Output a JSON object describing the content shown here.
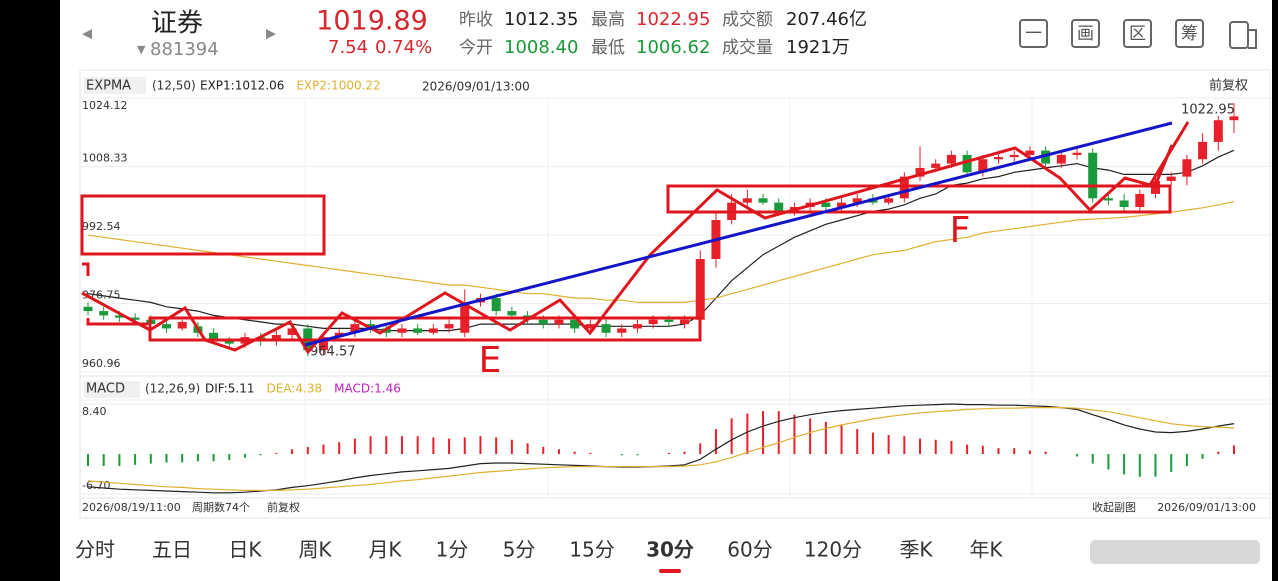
{
  "header": {
    "name": "证券",
    "code": "881394",
    "price": "1019.89",
    "change": "7.54",
    "change_pct": "0.74%",
    "stats": [
      {
        "label": "昨收",
        "value": "1012.35"
      },
      {
        "label": "最高",
        "value": "1022.95"
      },
      {
        "label": "成交额",
        "value": "207.46亿"
      },
      {
        "label": "今开",
        "value": "1008.40"
      },
      {
        "label": "最低",
        "value": "1006.62"
      },
      {
        "label": "成交量",
        "value": "1921万"
      }
    ],
    "tools": [
      "一",
      "画",
      "区",
      "筹"
    ]
  },
  "chart_data": [
    {
      "type": "candlestick",
      "indicator": "EXPMA",
      "params": "(12,50)",
      "legend": [
        "EXP1:1012.06",
        "EXP2:1000.22"
      ],
      "time": "2026/09/01/13:00",
      "adjust": "前复权",
      "up_color": "#e8202a",
      "down_color": "#1a9a3a",
      "open": [
        976,
        975,
        974,
        973.5,
        973,
        972,
        971,
        971.5,
        970,
        968,
        967.5,
        969,
        968,
        969.5,
        971,
        966,
        969,
        970,
        972,
        971,
        970,
        971,
        970,
        971,
        970,
        977,
        978,
        975,
        974,
        973,
        972,
        973,
        971,
        972,
        970,
        971,
        972,
        973,
        972,
        973,
        987,
        996,
        1000,
        1001,
        1000,
        998,
        999,
        1000,
        999,
        1000,
        1001,
        1000,
        1001,
        1006,
        1008,
        1009,
        1011,
        1007,
        1010,
        1010.5,
        1011,
        1012,
        1009,
        1011,
        1011.5,
        1001,
        1000.5,
        999,
        1002,
        1005,
        1006,
        1010,
        1014,
        1019
      ],
      "close": [
        975,
        974,
        973.5,
        973,
        972,
        971,
        972.5,
        970,
        968.5,
        967.5,
        969,
        968,
        969.5,
        971,
        966,
        969,
        970,
        972,
        971,
        970,
        971,
        970,
        971,
        972,
        977,
        978,
        975,
        974,
        973,
        972,
        973,
        971,
        972,
        970,
        971,
        972,
        973,
        972.5,
        973,
        987,
        996,
        1000,
        1001,
        1000,
        998,
        999,
        1000,
        999,
        1000,
        1001,
        1000,
        1001,
        1006,
        1008,
        1009,
        1011,
        1007,
        1010,
        1010.5,
        1011,
        1012,
        1009,
        1011,
        1011.5,
        1001,
        1000.5,
        999,
        1002,
        1005,
        1006,
        1010,
        1014,
        1019,
        1019.89
      ],
      "high": [
        977,
        976,
        975,
        974.5,
        974,
        973,
        973,
        972.5,
        971,
        969,
        970,
        970,
        970.5,
        972,
        972,
        970,
        971,
        973,
        973,
        972,
        972,
        972,
        972,
        973,
        980,
        979,
        979,
        976,
        975,
        974,
        974,
        974,
        973,
        973,
        972,
        973,
        974,
        974,
        974,
        989,
        998,
        1002,
        1003,
        1002,
        1001,
        1000,
        1001,
        1001,
        1001,
        1002,
        1002,
        1002,
        1007,
        1013,
        1010,
        1012,
        1012,
        1011,
        1012,
        1012,
        1013,
        1013,
        1012,
        1012.5,
        1012.5,
        1002.5,
        1002,
        1003,
        1006,
        1007,
        1011,
        1016,
        1020,
        1022.95
      ],
      "low": [
        974,
        973,
        972.5,
        972,
        971,
        970,
        970.5,
        969,
        967.5,
        966.5,
        966.5,
        967,
        967,
        968.5,
        964.57,
        965,
        968,
        969,
        970,
        969,
        969,
        969.5,
        969.5,
        970,
        969,
        976,
        974,
        973,
        972,
        971,
        971,
        970,
        970,
        969,
        969,
        970,
        971,
        971.5,
        971,
        972,
        985,
        995,
        999,
        999.5,
        997,
        997,
        998,
        998,
        998,
        999,
        999.5,
        999.5,
        1000,
        1005,
        1007,
        1008,
        1006,
        1006,
        1009,
        1009.5,
        1010,
        1008,
        1008,
        1010,
        1000,
        999.5,
        998,
        998,
        1001,
        1004,
        1004,
        1009,
        1012,
        1016
      ],
      "series": [
        {
          "color": "#222222",
          "values": [
            979,
            978.5,
            978,
            977.5,
            977,
            976,
            975.5,
            975,
            974,
            973.5,
            973,
            972.5,
            972,
            972,
            971.5,
            971,
            971,
            971,
            971,
            970.5,
            970.5,
            970.5,
            970.5,
            970.5,
            971,
            972,
            972,
            972,
            972,
            972,
            972,
            972,
            971.5,
            971.5,
            971.5,
            971.5,
            971.5,
            971.5,
            972,
            974,
            978,
            982,
            985,
            988,
            990,
            992,
            993.5,
            995,
            996,
            997,
            998,
            998.5,
            999.5,
            1001,
            1002,
            1004,
            1004.5,
            1005.5,
            1006,
            1007,
            1007.5,
            1008,
            1008.5,
            1009,
            1008,
            1007.5,
            1006.5,
            1006.5,
            1006.5,
            1006.5,
            1007,
            1008.5,
            1010.5,
            1012.06
          ]
        },
        {
          "color": "#e0b030",
          "values": [
            992.5,
            992,
            991.5,
            991,
            990.5,
            990,
            989.5,
            989,
            988.5,
            988,
            987.5,
            987,
            986.5,
            986,
            985.5,
            985,
            984.5,
            984,
            983.5,
            983,
            982.5,
            982,
            981.5,
            981,
            981,
            980.5,
            980,
            979.5,
            979,
            979,
            978.5,
            978,
            978,
            977.5,
            977.5,
            977,
            977,
            977,
            977,
            977.5,
            978,
            979,
            980,
            981,
            982,
            983,
            984,
            985,
            986,
            987,
            988,
            988.5,
            989,
            990,
            991,
            991.5,
            992,
            993,
            993.5,
            994,
            994.5,
            995,
            995.5,
            996,
            996.2,
            996.4,
            996.6,
            997,
            997.4,
            997.8,
            998.3,
            998.8,
            999.5,
            1000.22
          ]
        }
      ],
      "ylim": [
        960.96,
        1024.12
      ],
      "yticks": [
        1024.12,
        1008.33,
        992.54,
        976.75,
        960.96
      ],
      "annotations": [
        "1022.95",
        "964.57",
        "E",
        "F"
      ]
    },
    {
      "type": "macd",
      "indicator": "MACD",
      "params": "(12,26,9)",
      "legend": [
        "DIF:5.11",
        "DEA:4.38",
        "MACD:1.46"
      ],
      "macd_color": "#c020c0",
      "up_color": "#e8202a",
      "down_color": "#1a9a3a",
      "values": [
        -2.0,
        -2.0,
        -2.0,
        -1.8,
        -1.6,
        -1.4,
        -1.4,
        -1.2,
        -1.2,
        -1.0,
        -0.6,
        -0.2,
        0.2,
        0.8,
        1.2,
        1.6,
        2.0,
        2.6,
        3.0,
        3.0,
        3.0,
        3.0,
        2.8,
        2.6,
        2.8,
        3.0,
        2.8,
        2.4,
        1.8,
        1.2,
        0.8,
        0.4,
        0.2,
        0.0,
        -0.2,
        -0.2,
        0.0,
        0.2,
        0.4,
        1.8,
        4.2,
        6.0,
        6.8,
        7.2,
        7.2,
        6.6,
        6.0,
        5.4,
        4.8,
        4.2,
        3.6,
        3.2,
        3.0,
        2.6,
        2.4,
        2.2,
        1.6,
        1.4,
        1.0,
        1.0,
        0.6,
        0.4,
        0.0,
        -0.4,
        -1.6,
        -2.6,
        -3.4,
        -3.8,
        -3.8,
        -3.0,
        -2.0,
        -0.8,
        0.4,
        1.46
      ],
      "series": [
        {
          "color": "#222222",
          "values": [
            -5.5,
            -5.7,
            -5.9,
            -6.0,
            -6.1,
            -6.2,
            -6.3,
            -6.4,
            -6.5,
            -6.5,
            -6.4,
            -6.2,
            -6.0,
            -5.6,
            -5.3,
            -4.9,
            -4.5,
            -4.0,
            -3.6,
            -3.3,
            -3.0,
            -2.8,
            -2.6,
            -2.4,
            -2.0,
            -1.6,
            -1.5,
            -1.5,
            -1.6,
            -1.7,
            -1.8,
            -1.9,
            -2.0,
            -2.1,
            -2.2,
            -2.2,
            -2.1,
            -2.0,
            -1.8,
            -0.9,
            0.8,
            2.4,
            3.7,
            4.7,
            5.5,
            6.1,
            6.6,
            7.0,
            7.3,
            7.5,
            7.7,
            7.9,
            8.1,
            8.2,
            8.3,
            8.4,
            8.3,
            8.3,
            8.2,
            8.2,
            8.1,
            8.0,
            7.8,
            7.5,
            6.6,
            5.8,
            4.9,
            4.2,
            3.7,
            3.6,
            3.8,
            4.2,
            4.7,
            5.11
          ]
        },
        {
          "color": "#e0b030",
          "values": [
            -4.5,
            -4.7,
            -4.9,
            -5.1,
            -5.3,
            -5.5,
            -5.6,
            -5.8,
            -5.9,
            -6.0,
            -6.1,
            -6.1,
            -6.1,
            -6.0,
            -5.9,
            -5.7,
            -5.5,
            -5.3,
            -5.1,
            -4.8,
            -4.5,
            -4.3,
            -4.0,
            -3.7,
            -3.4,
            -3.1,
            -2.9,
            -2.7,
            -2.5,
            -2.3,
            -2.2,
            -2.1,
            -2.1,
            -2.1,
            -2.1,
            -2.1,
            -2.1,
            -2.1,
            -2.0,
            -1.8,
            -1.3,
            -0.6,
            0.3,
            1.1,
            1.9,
            2.8,
            3.6,
            4.3,
            4.9,
            5.4,
            5.9,
            6.3,
            6.6,
            6.9,
            7.1,
            7.3,
            7.5,
            7.6,
            7.7,
            7.7,
            7.8,
            7.8,
            7.8,
            7.7,
            7.4,
            7.1,
            6.6,
            6.1,
            5.6,
            5.1,
            4.8,
            4.6,
            4.5,
            4.38
          ]
        }
      ],
      "ylim": [
        -6.7,
        8.4
      ],
      "yticks": [
        {
          "value": 8.4,
          "label": "8.40"
        },
        {
          "value": -6.7,
          "label": "-6.70"
        }
      ]
    }
  ],
  "footer": {
    "start": "2026/08/19/11:00",
    "periods": "周期数74个",
    "adjust": "前复权",
    "collapse": "收起副图",
    "end": "2026/09/01/13:00"
  },
  "tabs": [
    "分时",
    "五日",
    "日K",
    "周K",
    "月K",
    "1分",
    "5分",
    "15分",
    "30分",
    "60分",
    "120分",
    "季K",
    "年K"
  ],
  "active_tab": 8
}
